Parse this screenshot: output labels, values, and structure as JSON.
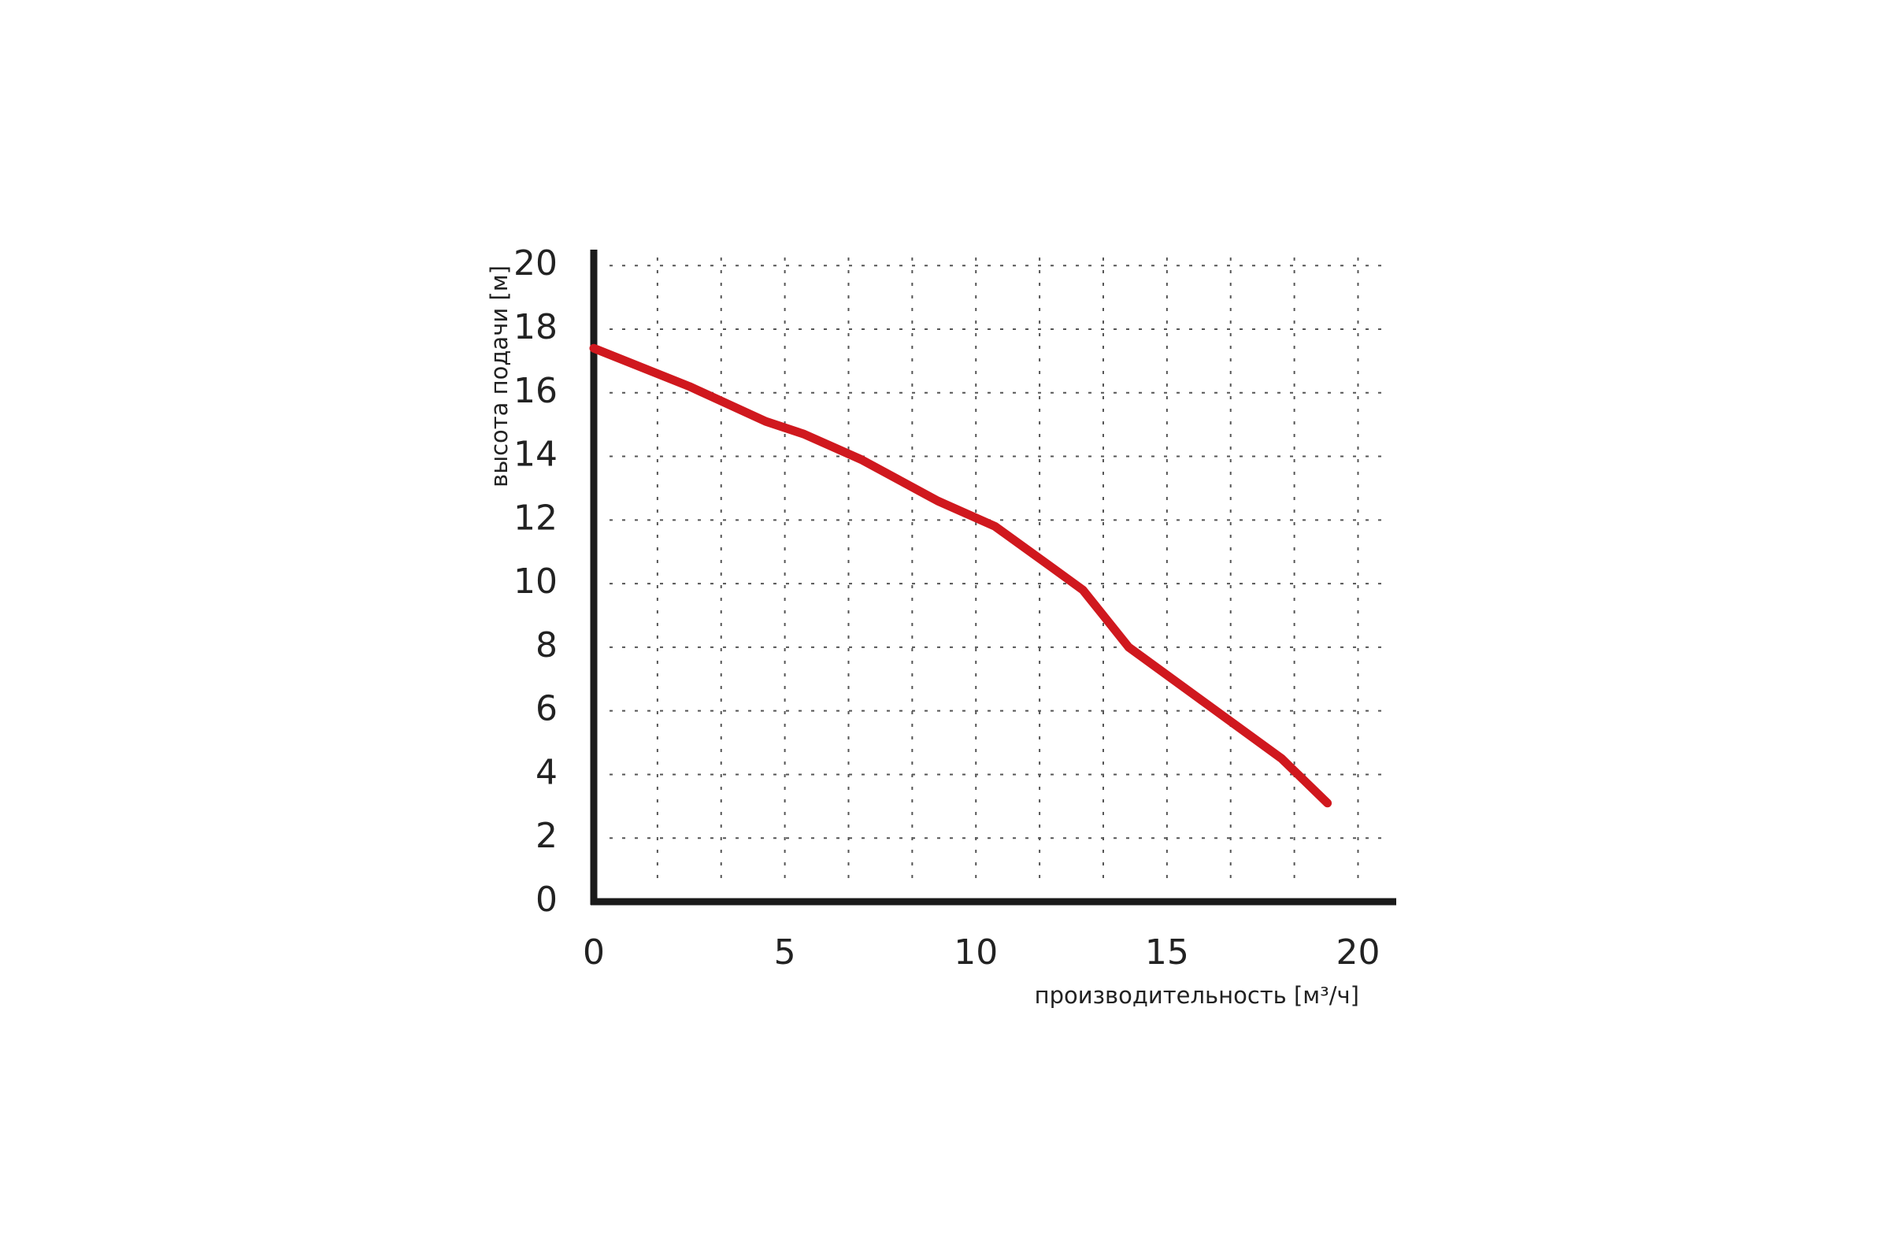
{
  "chart_data": {
    "type": "line",
    "xlabel": "производительность [м³/ч]",
    "ylabel": "высота подачи [м]",
    "x": [
      0,
      2.5,
      4.5,
      5.5,
      7,
      9,
      10.5,
      12,
      12.8,
      14,
      16,
      18,
      19.2
    ],
    "series": [
      {
        "color": "#d0181e",
        "values": [
          17.4,
          16.2,
          15.1,
          14.7,
          13.9,
          12.6,
          11.8,
          10.5,
          9.8,
          8.0,
          6.25,
          4.5,
          3.1
        ]
      }
    ],
    "xlim": [
      0,
      21
    ],
    "xticks": [
      0,
      5,
      10,
      15,
      20
    ],
    "ylim": [
      0,
      20.5
    ],
    "yticks": [
      0,
      2,
      4,
      6,
      8,
      10,
      12,
      14,
      16,
      18,
      20
    ],
    "grid": true
  }
}
